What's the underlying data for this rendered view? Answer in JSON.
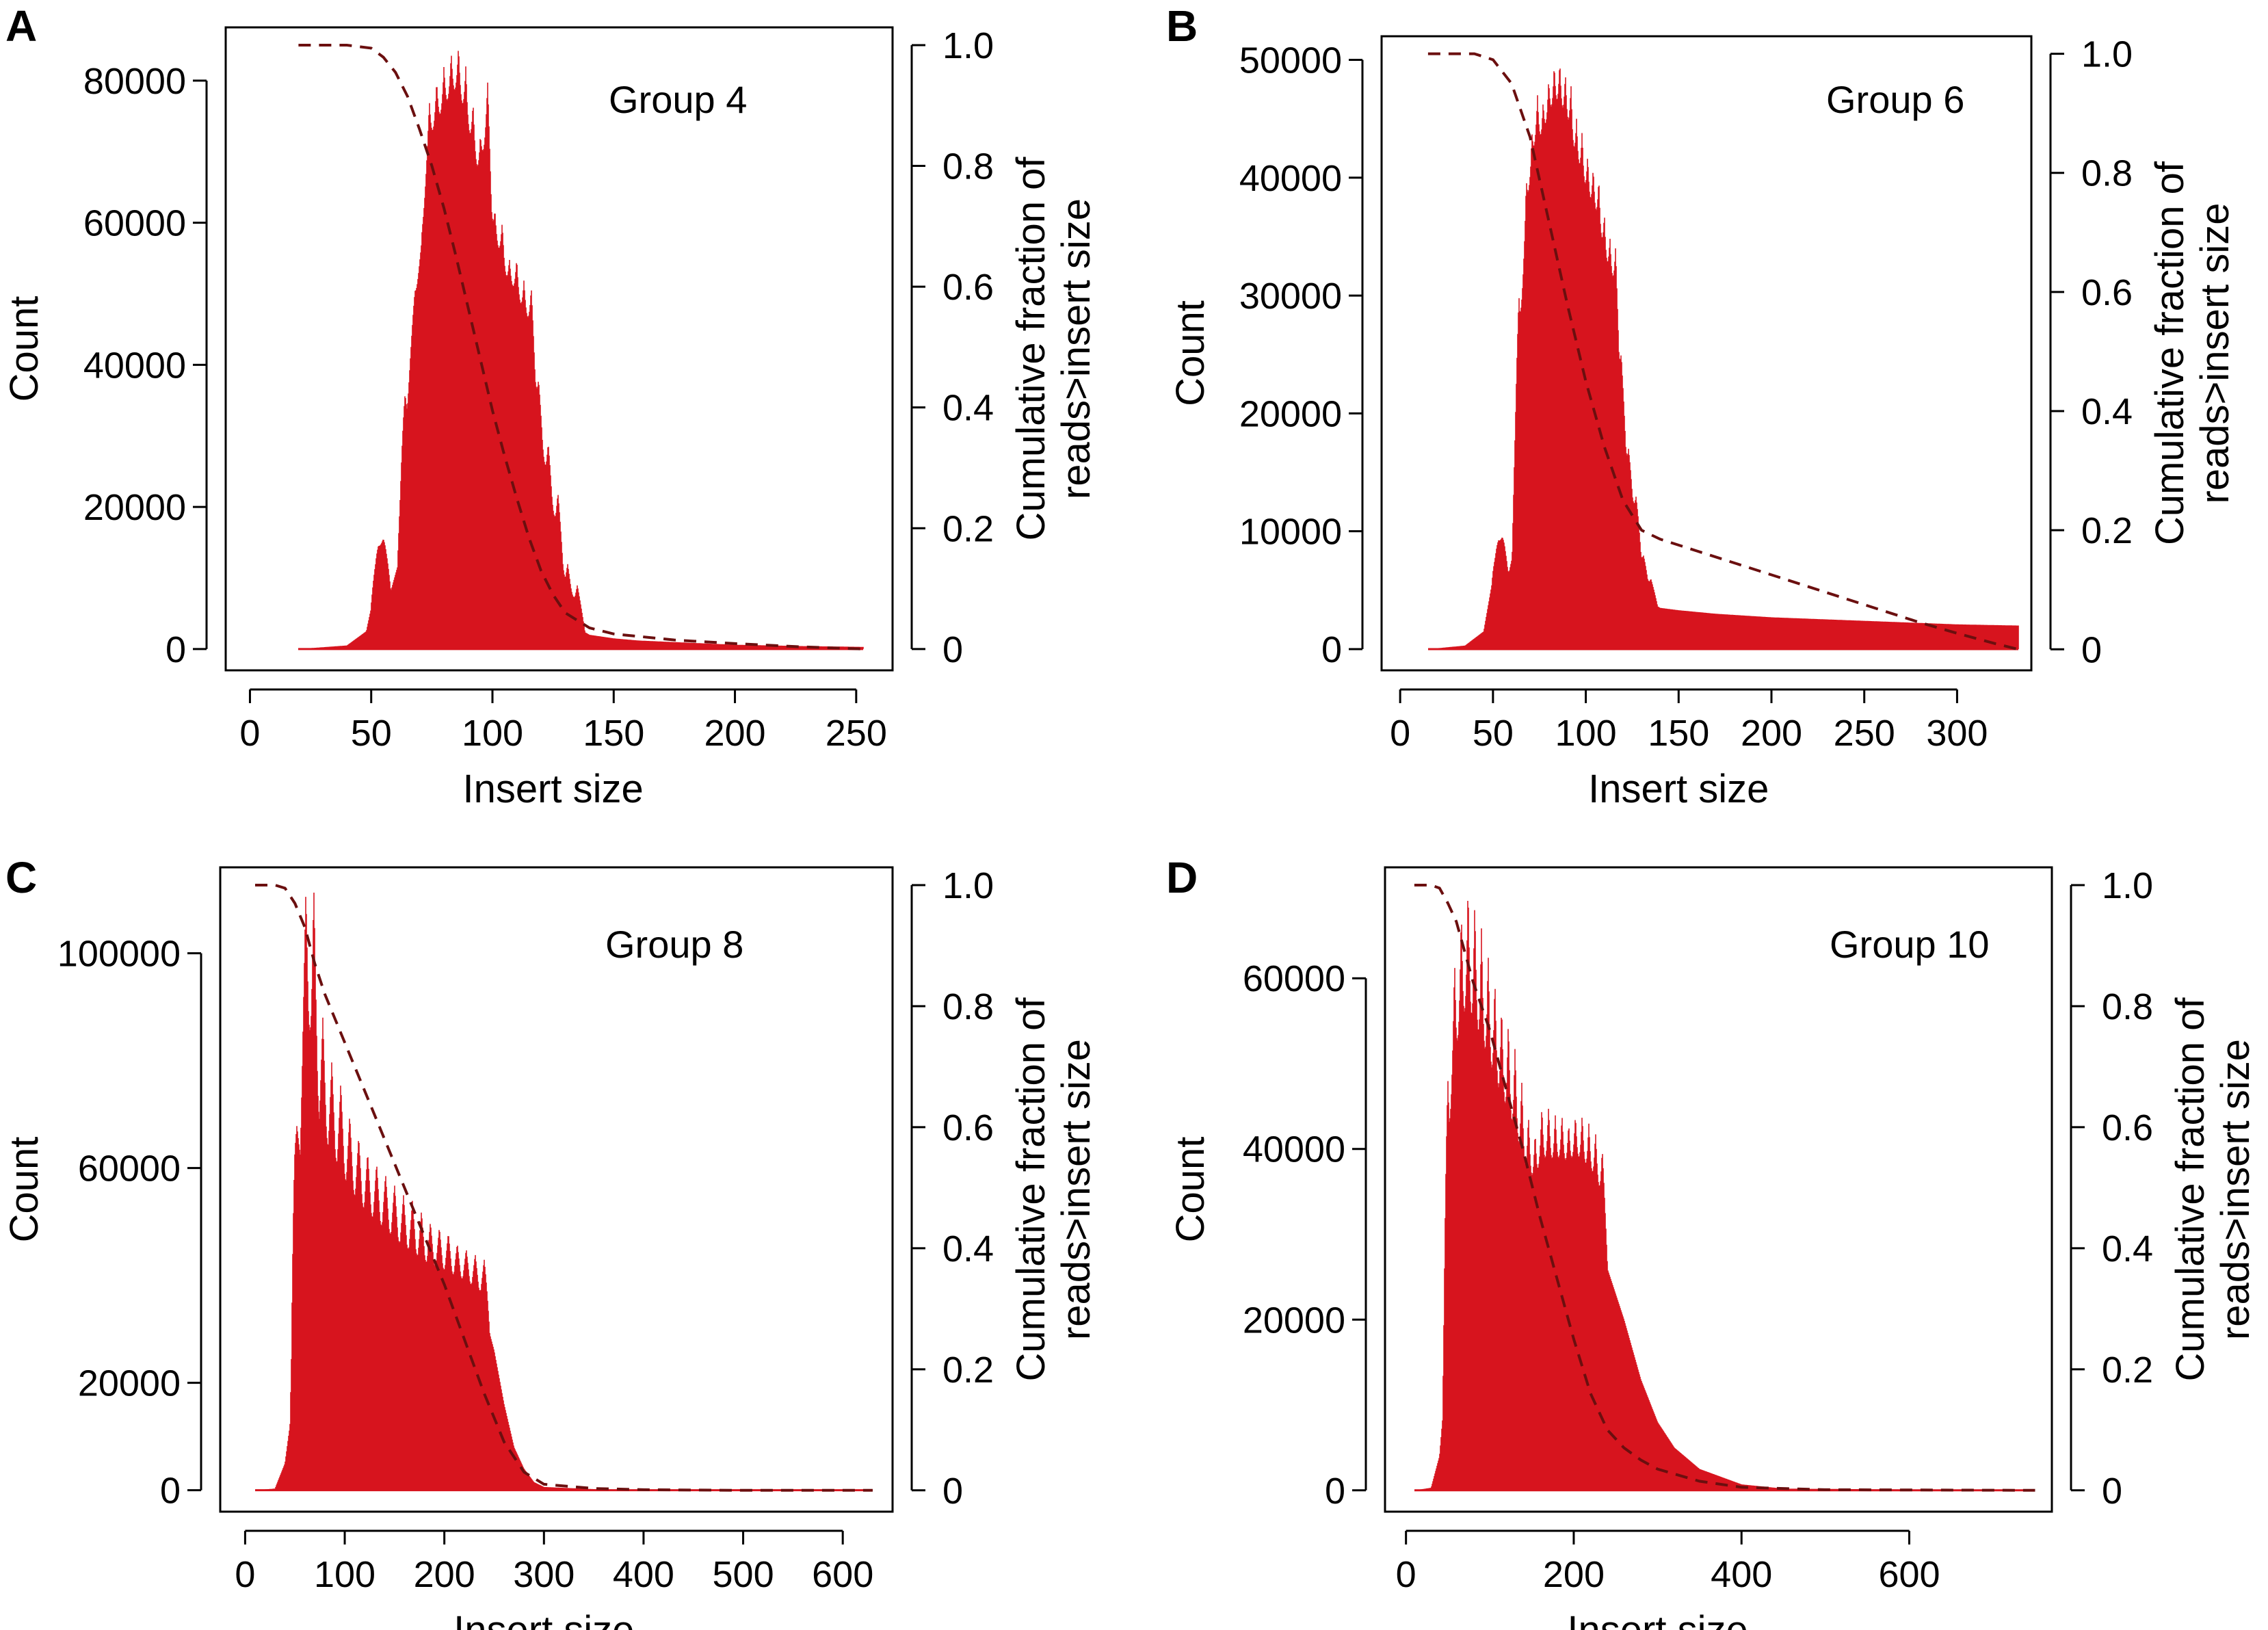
{
  "figure": {
    "colors": {
      "histogram": "#d7141e",
      "cumulative": "#6b0f0f",
      "axes": "#000000"
    },
    "panels": [
      {
        "letter": "A",
        "annotation": "Group 4",
        "chart_data": {
          "type": "bar",
          "xlabel": "Insert size",
          "ylabel": "Count",
          "y2label": [
            "Cumulative fraction of",
            "reads>insert size"
          ],
          "xlim": [
            -10,
            265
          ],
          "ylim": [
            -3000,
            87500
          ],
          "y2lim": [
            -0.0353,
            1.0294
          ],
          "xticks": [
            "0",
            "50",
            "100",
            "150",
            "200",
            "250"
          ],
          "xtick_values": [
            0,
            50,
            100,
            150,
            200,
            250
          ],
          "yticks": [
            "0",
            "20000",
            "40000",
            "60000",
            "80000"
          ],
          "ytick_values": [
            0,
            20000,
            40000,
            60000,
            80000
          ],
          "y2ticks": [
            "0",
            "0.2",
            "0.4",
            "0.6",
            "0.8",
            "1.0"
          ],
          "y2tick_values": [
            0,
            0.2,
            0.4,
            0.6,
            0.8,
            1.0
          ],
          "grid": false,
          "histogram": {
            "x_range": [
              20,
              253
            ],
            "envelope_x": [
              20,
              40,
              48,
              52,
              55,
              58,
              62,
              66,
              70,
              75,
              80,
              85,
              90,
              95,
              100,
              105,
              110,
              115,
              120,
              125,
              130,
              135,
              140,
              150,
              160,
              180,
              200,
              230,
              253
            ],
            "envelope_y": [
              0,
              500,
              2500,
              9000,
              12000,
              8000,
              13000,
              33000,
              45000,
              52000,
              55000,
              58000,
              53000,
              48000,
              44000,
              40000,
              36000,
              30000,
              22000,
              12000,
              5000,
              3000,
              2000,
              1500,
              1200,
              900,
              600,
              400,
              300
            ],
            "peaks_x": [
              53,
              55,
              64,
              68,
              71,
              74,
              77,
              80,
              83,
              86,
              89,
              92,
              95,
              98,
              101,
              104,
              107,
              110,
              113,
              116,
              119,
              123,
              127,
              131,
              135
            ],
            "peaks_y": [
              14000,
              15500,
              36000,
              50000,
              58000,
              77000,
              80000,
              82000,
              84000,
              85000,
              82000,
              77000,
              72000,
              80000,
              62000,
              60000,
              55000,
              55000,
              52000,
              51000,
              38000,
              29000,
              22000,
              12000,
              9000
            ]
          },
          "cumulative": {
            "x": [
              20,
              30,
              40,
              50,
              55,
              60,
              65,
              70,
              75,
              80,
              85,
              90,
              95,
              100,
              105,
              110,
              115,
              120,
              125,
              130,
              140,
              150,
              175,
              200,
              225,
              253
            ],
            "y": [
              1.0,
              1.0,
              1.0,
              0.995,
              0.98,
              0.955,
              0.915,
              0.86,
              0.8,
              0.73,
              0.65,
              0.565,
              0.48,
              0.395,
              0.32,
              0.25,
              0.185,
              0.13,
              0.09,
              0.06,
              0.035,
              0.025,
              0.015,
              0.009,
              0.004,
              0.0
            ]
          }
        }
      },
      {
        "letter": "B",
        "annotation": "Group 6",
        "chart_data": {
          "type": "bar",
          "xlabel": "Insert size",
          "ylabel": "Count",
          "y2label": [
            "Cumulative fraction of",
            "reads>insert size"
          ],
          "xlim": [
            -10,
            340
          ],
          "ylim": [
            -1800,
            52000
          ],
          "y2lim": [
            -0.0353,
            1.0294
          ],
          "xticks": [
            "0",
            "50",
            "100",
            "150",
            "200",
            "250",
            "300"
          ],
          "xtick_values": [
            0,
            50,
            100,
            150,
            200,
            250,
            300
          ],
          "yticks": [
            "0",
            "10000",
            "20000",
            "30000",
            "40000",
            "50000"
          ],
          "ytick_values": [
            0,
            10000,
            20000,
            30000,
            40000,
            50000
          ],
          "y2ticks": [
            "0",
            "0.2",
            "0.4",
            "0.6",
            "0.8",
            "1.0"
          ],
          "y2tick_values": [
            0,
            0.2,
            0.4,
            0.6,
            0.8,
            1.0
          ],
          "grid": false,
          "histogram": {
            "x_range": [
              15,
              333
            ],
            "envelope_x": [
              15,
              35,
              45,
              50,
              55,
              58,
              62,
              66,
              70,
              75,
              80,
              85,
              90,
              95,
              100,
              105,
              110,
              115,
              120,
              125,
              130,
              135,
              140,
              150,
              170,
              200,
              250,
              300,
              333
            ],
            "envelope_y": [
              0,
              300,
              1500,
              6000,
              8000,
              6000,
              9000,
              19000,
              27000,
              30000,
              31000,
              30000,
              28000,
              26000,
              24000,
              22000,
              20000,
              18000,
              15000,
              10000,
              6000,
              4000,
              3500,
              3300,
              3000,
              2700,
              2400,
              2100,
              2000
            ],
            "peaks_x": [
              53,
              55,
              64,
              68,
              71,
              74,
              77,
              80,
              83,
              86,
              89,
              92,
              95,
              98,
              101,
              104,
              107,
              110,
              113,
              116,
              119,
              123,
              127,
              131,
              135
            ],
            "peaks_y": [
              9000,
              9500,
              30000,
              39000,
              43000,
              47000,
              46000,
              48000,
              49500,
              50000,
              49000,
              48000,
              45000,
              44000,
              42000,
              41000,
              40000,
              37000,
              35000,
              34000,
              25000,
              17000,
              13000,
              8000,
              6000
            ]
          },
          "cumulative": {
            "x": [
              15,
              40,
              50,
              60,
              70,
              80,
              90,
              100,
              110,
              120,
              130,
              140,
              160,
              180,
              200,
              220,
              240,
              260,
              280,
              300,
              320,
              333
            ],
            "y": [
              1.0,
              1.0,
              0.99,
              0.95,
              0.86,
              0.72,
              0.58,
              0.45,
              0.34,
              0.25,
              0.2,
              0.185,
              0.165,
              0.145,
              0.125,
              0.105,
              0.085,
              0.065,
              0.045,
              0.027,
              0.01,
              0.0
            ]
          }
        }
      },
      {
        "letter": "C",
        "annotation": "Group 8",
        "chart_data": {
          "type": "bar",
          "xlabel": "Insert size",
          "ylabel": "Count",
          "y2label": [
            "Cumulative fraction of",
            "reads>insert size"
          ],
          "xlim": [
            -25,
            650
          ],
          "ylim": [
            -4000,
            116000
          ],
          "y2lim": [
            -0.0353,
            1.0294
          ],
          "xticks": [
            "0",
            "100",
            "200",
            "300",
            "400",
            "500",
            "600"
          ],
          "xtick_values": [
            0,
            100,
            200,
            300,
            400,
            500,
            600
          ],
          "yticks": [
            "0",
            "20000",
            "60000",
            "100000"
          ],
          "ytick_values": [
            0,
            20000,
            60000,
            100000
          ],
          "y2ticks": [
            "0",
            "0.2",
            "0.4",
            "0.6",
            "0.8",
            "1.0"
          ],
          "y2tick_values": [
            0,
            0.2,
            0.4,
            0.6,
            0.8,
            1.0
          ],
          "grid": false,
          "histogram": {
            "x_range": [
              10,
              630
            ],
            "envelope_x": [
              10,
              30,
              40,
              45,
              50,
              60,
              70,
              80,
              100,
              120,
              140,
              160,
              180,
              200,
              220,
              240,
              250,
              260,
              270,
              280,
              290,
              300,
              350,
              400,
              630
            ],
            "envelope_y": [
              0,
              300,
              5000,
              12000,
              55000,
              62000,
              58000,
              55000,
              50000,
              46000,
              43000,
              40000,
              38000,
              37000,
              36000,
              33000,
              26000,
              16000,
              8000,
              4000,
              1500,
              600,
              200,
              50,
              0
            ],
            "peaks_x": [
              52,
              61,
              69,
              78,
              87,
              96,
              105,
              114,
              123,
              132,
              141,
              150,
              159,
              168,
              177,
              186,
              195,
              204,
              213,
              222,
              231,
              240
            ],
            "peaks_y": [
              68000,
              112000,
              112000,
              88000,
              80000,
              76000,
              70000,
              66000,
              63000,
              61000,
              59000,
              57000,
              55000,
              54000,
              52000,
              50000,
              49000,
              48000,
              46000,
              45000,
              44000,
              43000
            ]
          },
          "cumulative": {
            "x": [
              10,
              30,
              40,
              50,
              60,
              70,
              80,
              100,
              120,
              140,
              160,
              180,
              200,
              220,
              240,
              260,
              280,
              300,
              350,
              400,
              500,
              630
            ],
            "y": [
              1.0,
              1.0,
              0.995,
              0.97,
              0.93,
              0.87,
              0.82,
              0.74,
              0.66,
              0.58,
              0.5,
              0.42,
              0.34,
              0.25,
              0.16,
              0.08,
              0.03,
              0.01,
              0.003,
              0.001,
              0.0,
              0.0
            ]
          }
        }
      },
      {
        "letter": "D",
        "annotation": "Group 10",
        "chart_data": {
          "type": "bar",
          "xlabel": "Insert size",
          "ylabel": "Count",
          "y2label": [
            "Cumulative fraction of",
            "reads>insert size"
          ],
          "xlim": [
            -25,
            770
          ],
          "ylim": [
            -2500,
            73000
          ],
          "y2lim": [
            -0.0353,
            1.0294
          ],
          "xticks": [
            "0",
            "200",
            "400",
            "600"
          ],
          "xtick_values": [
            0,
            200,
            400,
            600
          ],
          "yticks": [
            "0",
            "20000",
            "40000",
            "60000"
          ],
          "ytick_values": [
            0,
            20000,
            40000,
            60000
          ],
          "y2ticks": [
            "0",
            "0.2",
            "0.4",
            "0.6",
            "0.8",
            "1.0"
          ],
          "y2tick_values": [
            0,
            0.2,
            0.4,
            0.6,
            0.8,
            1.0
          ],
          "grid": false,
          "histogram": {
            "x_range": [
              10,
              750
            ],
            "envelope_x": [
              10,
              30,
              40,
              45,
              50,
              60,
              70,
              80,
              100,
              120,
              140,
              160,
              180,
              200,
              220,
              240,
              260,
              280,
              300,
              320,
              350,
              400,
              450,
              750
            ],
            "envelope_y": [
              0,
              300,
              4000,
              10000,
              28000,
              33000,
              35000,
              34000,
              32000,
              29000,
              27000,
              29000,
              31000,
              32000,
              30000,
              26000,
              20000,
              13000,
              8000,
              5000,
              2500,
              700,
              200,
              0
            ],
            "peaks_x": [
              50,
              58,
              66,
              74,
              82,
              90,
              98,
              106,
              114,
              122,
              130,
              138,
              146,
              154,
              162,
              170,
              178,
              186,
              194,
              202,
              210,
              218,
              226,
              234
            ],
            "peaks_y": [
              48000,
              62000,
              68000,
              71000,
              69000,
              66000,
              63000,
              60000,
              57000,
              55000,
              52000,
              48000,
              44000,
              42000,
              45000,
              45000,
              44000,
              44000,
              43000,
              44000,
              44000,
              43000,
              42000,
              40000
            ]
          },
          "cumulative": {
            "x": [
              10,
              30,
              40,
              50,
              60,
              70,
              80,
              100,
              120,
              140,
              160,
              180,
              200,
              220,
              240,
              260,
              280,
              300,
              350,
              400,
              500,
              750
            ],
            "y": [
              1.0,
              1.0,
              0.995,
              0.97,
              0.94,
              0.89,
              0.84,
              0.76,
              0.66,
              0.56,
              0.45,
              0.35,
              0.25,
              0.16,
              0.1,
              0.07,
              0.05,
              0.035,
              0.015,
              0.005,
              0.001,
              0.0
            ]
          }
        }
      }
    ]
  }
}
